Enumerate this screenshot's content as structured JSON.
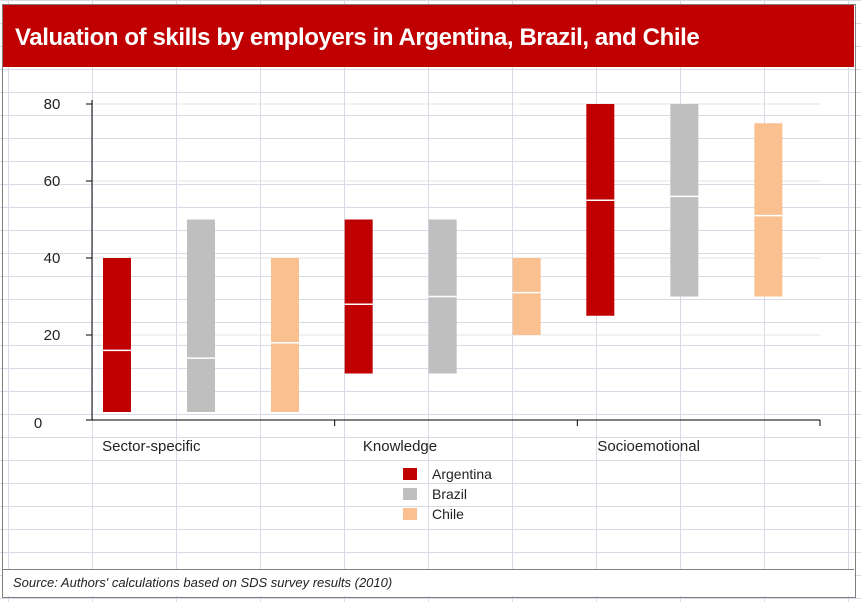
{
  "title": "Valuation of skills by employers in Argentina, Brazil, and Chile",
  "source": "Source: Authors' calculations based on SDS survey results (2010)",
  "chart_data": {
    "type": "bar",
    "subtype": "floating-range",
    "categories": [
      "Sector-specific",
      "Knowledge",
      "Socioemotional"
    ],
    "ylim": [
      0,
      80
    ],
    "yticks": [
      0,
      20,
      40,
      60,
      80
    ],
    "grid": true,
    "legend_position": "bottom-center",
    "series": [
      {
        "name": "Argentina",
        "color": "#c00000",
        "low": [
          0,
          10,
          25
        ],
        "high": [
          40,
          50,
          80
        ],
        "mid": [
          16,
          28,
          55
        ]
      },
      {
        "name": "Brazil",
        "color": "#bfbfbf",
        "low": [
          0,
          10,
          30
        ],
        "high": [
          50,
          50,
          80
        ],
        "mid": [
          14,
          30,
          56
        ]
      },
      {
        "name": "Chile",
        "color": "#fac090",
        "low": [
          0,
          20,
          30
        ],
        "high": [
          40,
          40,
          75
        ],
        "mid": [
          18,
          31,
          51
        ]
      }
    ]
  }
}
